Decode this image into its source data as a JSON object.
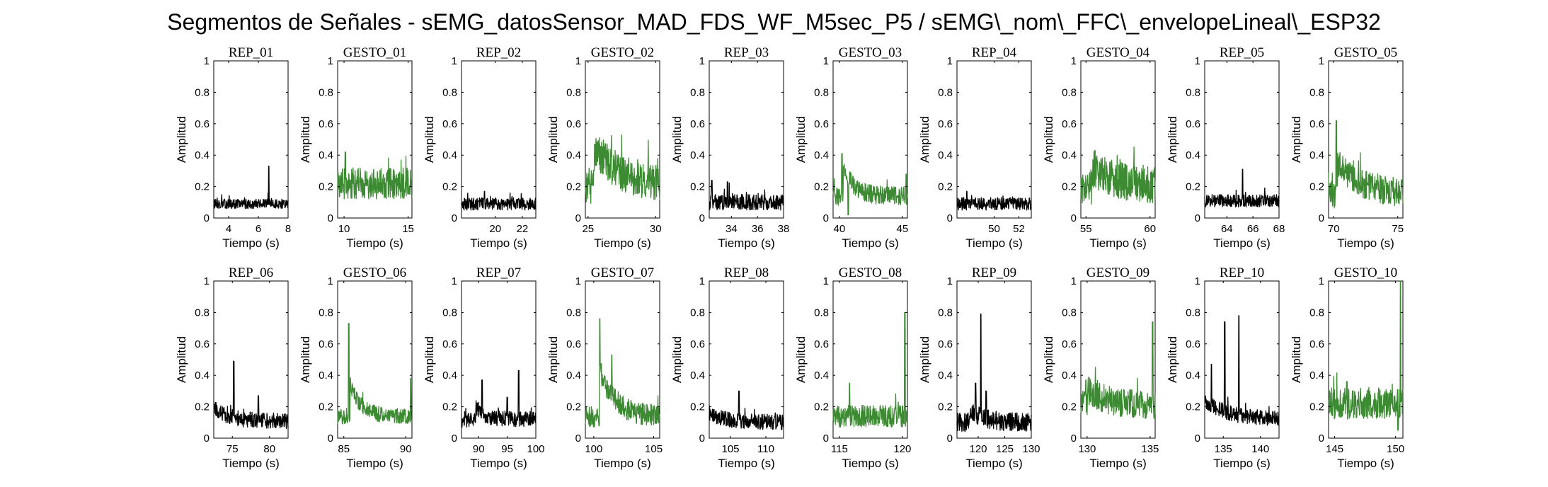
{
  "title": "Segmentos de Señales - sEMG_datosSensor_MAD_FDS_WF_M5sec_P5 / sEMG\\_nom\\_FFC\\_envelopeLineal\\_ESP32",
  "colors": {
    "rep": "#000000",
    "gesto": "#3c8a32",
    "axis": "#000000"
  },
  "chart_data": [
    {
      "type": "line",
      "title": "REP_01",
      "series_color": "rep",
      "xlim": [
        3,
        8
      ],
      "xticks": [
        4,
        6,
        8
      ],
      "ylim": [
        0,
        1
      ],
      "yticks": [
        0,
        0.2,
        0.4,
        0.6,
        0.8,
        1
      ],
      "xlabel": "Tiempo (s)",
      "ylabel": "Amplitud",
      "baseline": 0.09,
      "noise": 0.03,
      "spikes": [
        [
          6.7,
          0.33
        ]
      ],
      "decay": null
    },
    {
      "type": "line",
      "title": "GESTO_01",
      "series_color": "gesto",
      "xlim": [
        9.5,
        15.3
      ],
      "xticks": [
        10,
        15
      ],
      "ylim": [
        0,
        1
      ],
      "yticks": [
        0,
        0.2,
        0.4,
        0.6,
        0.8,
        1
      ],
      "xlabel": "Tiempo (s)",
      "ylabel": "Amplitud",
      "baseline": 0.22,
      "noise": 0.1,
      "spikes": [
        [
          10.1,
          0.42
        ]
      ],
      "decay": null
    },
    {
      "type": "line",
      "title": "REP_02",
      "series_color": "rep",
      "xlim": [
        17.5,
        23
      ],
      "xticks": [
        20,
        22
      ],
      "ylim": [
        0,
        1
      ],
      "yticks": [
        0,
        0.2,
        0.4,
        0.6,
        0.8,
        1
      ],
      "xlabel": "Tiempo (s)",
      "ylabel": "Amplitud",
      "baseline": 0.09,
      "noise": 0.04,
      "spikes": [
        [
          19.2,
          0.17
        ]
      ],
      "decay": null
    },
    {
      "type": "line",
      "title": "GESTO_02",
      "series_color": "gesto",
      "xlim": [
        24.8,
        30.3
      ],
      "xticks": [
        25,
        30
      ],
      "ylim": [
        0,
        1
      ],
      "yticks": [
        0,
        0.2,
        0.4,
        0.6,
        0.8,
        1
      ],
      "xlabel": "Tiempo (s)",
      "ylabel": "Amplitud",
      "baseline": 0.2,
      "noise": 0.12,
      "spikes": [
        [
          25.5,
          0.47
        ]
      ],
      "decay": [
        0.25,
        25.5,
        2
      ]
    },
    {
      "type": "line",
      "title": "REP_03",
      "series_color": "rep",
      "xlim": [
        32.3,
        38
      ],
      "xticks": [
        34,
        36,
        38
      ],
      "ylim": [
        0,
        1
      ],
      "yticks": [
        0,
        0.2,
        0.4,
        0.6,
        0.8,
        1
      ],
      "xlabel": "Tiempo (s)",
      "ylabel": "Amplitud",
      "baseline": 0.1,
      "noise": 0.05,
      "spikes": [
        [
          32.5,
          0.24
        ],
        [
          33.7,
          0.23
        ]
      ],
      "decay": null
    },
    {
      "type": "line",
      "title": "GESTO_03",
      "series_color": "gesto",
      "xlim": [
        39.5,
        45.4
      ],
      "xticks": [
        40,
        45
      ],
      "ylim": [
        0,
        1
      ],
      "yticks": [
        0,
        0.2,
        0.4,
        0.6,
        0.8,
        1
      ],
      "xlabel": "Tiempo (s)",
      "ylabel": "Amplitud",
      "baseline": 0.14,
      "noise": 0.06,
      "spikes": [
        [
          40.2,
          0.41
        ],
        [
          40.7,
          0.02
        ],
        [
          45.3,
          0.28
        ]
      ],
      "decay": [
        0.2,
        40.3,
        0.8
      ]
    },
    {
      "type": "line",
      "title": "REP_04",
      "series_color": "rep",
      "xlim": [
        47,
        53
      ],
      "xticks": [
        50,
        52
      ],
      "ylim": [
        0,
        1
      ],
      "yticks": [
        0,
        0.2,
        0.4,
        0.6,
        0.8,
        1
      ],
      "xlabel": "Tiempo (s)",
      "ylabel": "Amplitud",
      "baseline": 0.09,
      "noise": 0.04,
      "spikes": [
        [
          47.8,
          0.17
        ]
      ],
      "decay": null
    },
    {
      "type": "line",
      "title": "GESTO_04",
      "series_color": "gesto",
      "xlim": [
        54.6,
        60.4
      ],
      "xticks": [
        55,
        60
      ],
      "ylim": [
        0,
        1
      ],
      "yticks": [
        0,
        0.2,
        0.4,
        0.6,
        0.8,
        1
      ],
      "xlabel": "Tiempo (s)",
      "ylabel": "Amplitud",
      "baseline": 0.2,
      "noise": 0.12,
      "spikes": [
        [
          55.7,
          0.43
        ]
      ],
      "decay": [
        0.12,
        55.5,
        2
      ]
    },
    {
      "type": "line",
      "title": "REP_05",
      "series_color": "rep",
      "xlim": [
        62.3,
        68
      ],
      "xticks": [
        64,
        66,
        68
      ],
      "ylim": [
        0,
        1
      ],
      "yticks": [
        0,
        0.2,
        0.4,
        0.6,
        0.8,
        1
      ],
      "xlabel": "Tiempo (s)",
      "ylabel": "Amplitud",
      "baseline": 0.11,
      "noise": 0.04,
      "spikes": [
        [
          65.2,
          0.31
        ]
      ],
      "decay": null
    },
    {
      "type": "line",
      "title": "GESTO_05",
      "series_color": "gesto",
      "xlim": [
        69.6,
        75.4
      ],
      "xticks": [
        70,
        75
      ],
      "ylim": [
        0,
        1
      ],
      "yticks": [
        0,
        0.2,
        0.4,
        0.6,
        0.8,
        1
      ],
      "xlabel": "Tiempo (s)",
      "ylabel": "Amplitud",
      "baseline": 0.15,
      "noise": 0.09,
      "spikes": [
        [
          70.2,
          0.62
        ]
      ],
      "decay": [
        0.2,
        70.3,
        1.8
      ]
    },
    {
      "type": "line",
      "title": "REP_06",
      "series_color": "rep",
      "xlim": [
        72.5,
        82.5
      ],
      "xticks": [
        75,
        80
      ],
      "ylim": [
        0,
        1
      ],
      "yticks": [
        0,
        0.2,
        0.4,
        0.6,
        0.8,
        1
      ],
      "xlabel": "Tiempo (s)",
      "ylabel": "Amplitud",
      "baseline": 0.11,
      "noise": 0.05,
      "spikes": [
        [
          75.2,
          0.49
        ],
        [
          78.5,
          0.27
        ]
      ],
      "decay": [
        0.08,
        72.5,
        2
      ]
    },
    {
      "type": "line",
      "title": "GESTO_06",
      "series_color": "gesto",
      "xlim": [
        84.5,
        90.5
      ],
      "xticks": [
        85,
        90
      ],
      "ylim": [
        0,
        1
      ],
      "yticks": [
        0,
        0.2,
        0.4,
        0.6,
        0.8,
        1
      ],
      "xlabel": "Tiempo (s)",
      "ylabel": "Amplitud",
      "baseline": 0.14,
      "noise": 0.05,
      "spikes": [
        [
          85.4,
          0.73
        ],
        [
          90.4,
          0.38
        ]
      ],
      "decay": [
        0.2,
        85.5,
        0.9
      ]
    },
    {
      "type": "line",
      "title": "REP_07",
      "series_color": "rep",
      "xlim": [
        87,
        100
      ],
      "xticks": [
        90,
        95,
        100
      ],
      "ylim": [
        0,
        1
      ],
      "yticks": [
        0,
        0.2,
        0.4,
        0.6,
        0.8,
        1
      ],
      "xlabel": "Tiempo (s)",
      "ylabel": "Amplitud",
      "baseline": 0.12,
      "noise": 0.05,
      "spikes": [
        [
          90.6,
          0.37
        ],
        [
          95,
          0.26
        ],
        [
          97,
          0.43
        ]
      ],
      "decay": [
        0.08,
        89.5,
        1.5
      ]
    },
    {
      "type": "line",
      "title": "GESTO_07",
      "series_color": "gesto",
      "xlim": [
        99.3,
        105.5
      ],
      "xticks": [
        100,
        105
      ],
      "ylim": [
        0,
        1
      ],
      "yticks": [
        0,
        0.2,
        0.4,
        0.6,
        0.8,
        1
      ],
      "xlabel": "Tiempo (s)",
      "ylabel": "Amplitud",
      "baseline": 0.14,
      "noise": 0.07,
      "spikes": [
        [
          100.5,
          0.76
        ],
        [
          101.5,
          0.53
        ]
      ],
      "decay": [
        0.3,
        100.5,
        1.2
      ]
    },
    {
      "type": "line",
      "title": "REP_08",
      "series_color": "rep",
      "xlim": [
        102,
        112.5
      ],
      "xticks": [
        105,
        110
      ],
      "ylim": [
        0,
        1
      ],
      "yticks": [
        0,
        0.2,
        0.4,
        0.6,
        0.8,
        1
      ],
      "xlabel": "Tiempo (s)",
      "ylabel": "Amplitud",
      "baseline": 0.1,
      "noise": 0.05,
      "spikes": [
        [
          106.2,
          0.3
        ]
      ],
      "decay": [
        0.06,
        102,
        2.5
      ]
    },
    {
      "type": "line",
      "title": "GESTO_08",
      "series_color": "gesto",
      "xlim": [
        114.5,
        120.4
      ],
      "xticks": [
        115,
        120
      ],
      "ylim": [
        0,
        1
      ],
      "yticks": [
        0,
        0.2,
        0.4,
        0.6,
        0.8,
        1
      ],
      "xlabel": "Tiempo (s)",
      "ylabel": "Amplitud",
      "baseline": 0.14,
      "noise": 0.07,
      "spikes": [
        [
          115.8,
          0.35
        ],
        [
          120.2,
          0.8
        ]
      ],
      "decay": null
    },
    {
      "type": "line",
      "title": "REP_09",
      "series_color": "rep",
      "xlim": [
        116,
        130
      ],
      "xticks": [
        120,
        125,
        130
      ],
      "ylim": [
        0,
        1
      ],
      "yticks": [
        0,
        0.2,
        0.4,
        0.6,
        0.8,
        1
      ],
      "xlabel": "Tiempo (s)",
      "ylabel": "Amplitud",
      "baseline": 0.1,
      "noise": 0.06,
      "spikes": [
        [
          120.5,
          0.79
        ],
        [
          119.5,
          0.35
        ],
        [
          121.5,
          0.3
        ]
      ],
      "decay": [
        0.08,
        118.5,
        2.5
      ]
    },
    {
      "type": "line",
      "title": "GESTO_09",
      "series_color": "gesto",
      "xlim": [
        129.5,
        135.4
      ],
      "xticks": [
        130,
        135
      ],
      "ylim": [
        0,
        1
      ],
      "yticks": [
        0,
        0.2,
        0.4,
        0.6,
        0.8,
        1
      ],
      "xlabel": "Tiempo (s)",
      "ylabel": "Amplitud",
      "baseline": 0.21,
      "noise": 0.09,
      "spikes": [
        [
          129.9,
          0.37
        ],
        [
          135.2,
          0.74
        ]
      ],
      "decay": [
        0.1,
        130,
        1.5
      ]
    },
    {
      "type": "line",
      "title": "REP_10",
      "series_color": "rep",
      "xlim": [
        132.5,
        142.5
      ],
      "xticks": [
        135,
        140
      ],
      "ylim": [
        0,
        1
      ],
      "yticks": [
        0,
        0.2,
        0.4,
        0.6,
        0.8,
        1
      ],
      "xlabel": "Tiempo (s)",
      "ylabel": "Amplitud",
      "baseline": 0.12,
      "noise": 0.05,
      "spikes": [
        [
          133.4,
          0.47
        ],
        [
          135.2,
          0.74
        ],
        [
          137.1,
          0.78
        ]
      ],
      "decay": [
        0.12,
        132.5,
        3
      ]
    },
    {
      "type": "line",
      "title": "GESTO_10",
      "series_color": "gesto",
      "xlim": [
        144.5,
        150.6
      ],
      "xticks": [
        145,
        150
      ],
      "ylim": [
        0,
        1
      ],
      "yticks": [
        0,
        0.2,
        0.4,
        0.6,
        0.8,
        1
      ],
      "xlabel": "Tiempo (s)",
      "ylabel": "Amplitud",
      "baseline": 0.22,
      "noise": 0.1,
      "spikes": [
        [
          146,
          0.36
        ],
        [
          150.4,
          1.0
        ],
        [
          150.2,
          0.05
        ]
      ],
      "decay": null
    }
  ]
}
